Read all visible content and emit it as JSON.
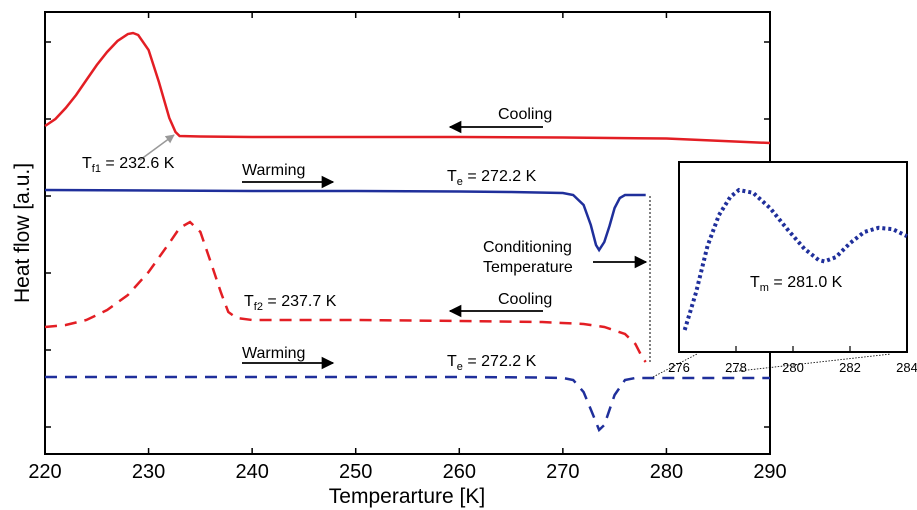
{
  "chart_data": {
    "type": "line",
    "title": "",
    "xlabel": "Temperarture [K]",
    "ylabel": "Heat flow [a.u.]",
    "xlim": [
      220,
      290
    ],
    "x_ticks": [
      "220",
      "230",
      "240",
      "250",
      "260",
      "270",
      "280",
      "290"
    ],
    "y_tick_labels": "none",
    "grid": false,
    "series": [
      {
        "id": "cooling1",
        "style": "solid",
        "color": "#e31e24",
        "points": [
          [
            220,
            126
          ],
          [
            221,
            119
          ],
          [
            222,
            108
          ],
          [
            223,
            95
          ],
          [
            224,
            80
          ],
          [
            225,
            65
          ],
          [
            226,
            52
          ],
          [
            227,
            41
          ],
          [
            228,
            34
          ],
          [
            228.5,
            33
          ],
          [
            229,
            35
          ],
          [
            230,
            50
          ],
          [
            231,
            82
          ],
          [
            232,
            118
          ],
          [
            232.6,
            132
          ],
          [
            233,
            136
          ],
          [
            235,
            136.5
          ],
          [
            240,
            137
          ],
          [
            250,
            137
          ],
          [
            260,
            137
          ],
          [
            270,
            137.5
          ],
          [
            280,
            138.5
          ],
          [
            290,
            143
          ]
        ]
      },
      {
        "id": "warming1",
        "style": "solid",
        "color": "#1f2f9b",
        "points": [
          [
            220,
            190
          ],
          [
            240,
            191
          ],
          [
            250,
            191
          ],
          [
            260,
            191.5
          ],
          [
            265,
            192
          ],
          [
            270,
            193
          ],
          [
            271,
            195
          ],
          [
            272,
            205
          ],
          [
            272.7,
            225
          ],
          [
            273.2,
            245
          ],
          [
            273.5,
            250
          ],
          [
            274,
            242
          ],
          [
            274.5,
            226
          ],
          [
            275,
            208
          ],
          [
            275.5,
            198
          ],
          [
            276,
            195
          ],
          [
            278,
            195
          ]
        ]
      },
      {
        "id": "cooling2",
        "style": "dashed",
        "color": "#e31e24",
        "points": [
          [
            220,
            327
          ],
          [
            222,
            325
          ],
          [
            224,
            320
          ],
          [
            226,
            310
          ],
          [
            228,
            295
          ],
          [
            230,
            272
          ],
          [
            232,
            243
          ],
          [
            233,
            228
          ],
          [
            234,
            222
          ],
          [
            235,
            232
          ],
          [
            236,
            262
          ],
          [
            237,
            293
          ],
          [
            237.7,
            312
          ],
          [
            238.5,
            318
          ],
          [
            240,
            320
          ],
          [
            250,
            320
          ],
          [
            260,
            321
          ],
          [
            268,
            322
          ],
          [
            272,
            324
          ],
          [
            274,
            327
          ],
          [
            276,
            334
          ],
          [
            277,
            344
          ],
          [
            277.7,
            358
          ],
          [
            278,
            362
          ]
        ]
      },
      {
        "id": "warming2",
        "style": "dashed",
        "color": "#1f2f9b",
        "points": [
          [
            220,
            377
          ],
          [
            230,
            377
          ],
          [
            240,
            377
          ],
          [
            250,
            377
          ],
          [
            260,
            377
          ],
          [
            268,
            377.5
          ],
          [
            270,
            378
          ],
          [
            271,
            380
          ],
          [
            272,
            392
          ],
          [
            273,
            417
          ],
          [
            273.5,
            430
          ],
          [
            274,
            425
          ],
          [
            275,
            395
          ],
          [
            276,
            380
          ],
          [
            277,
            378
          ],
          [
            280,
            378
          ],
          [
            290,
            378
          ]
        ]
      },
      {
        "id": "inset",
        "style": "dotted",
        "color": "#1f2f9b",
        "points": [
          [
            276.2,
            0.0
          ],
          [
            276.6,
            0.27
          ],
          [
            277.0,
            0.6
          ],
          [
            277.4,
            0.82
          ],
          [
            277.8,
            0.95
          ],
          [
            278.1,
            1.0
          ],
          [
            278.6,
            0.98
          ],
          [
            279.2,
            0.87
          ],
          [
            279.8,
            0.72
          ],
          [
            280.4,
            0.58
          ],
          [
            280.9,
            0.5
          ],
          [
            281.1,
            0.49
          ],
          [
            281.5,
            0.52
          ],
          [
            282.0,
            0.62
          ],
          [
            282.5,
            0.7
          ],
          [
            283.0,
            0.73
          ],
          [
            283.5,
            0.72
          ],
          [
            284.0,
            0.67
          ]
        ]
      }
    ],
    "inset": {
      "xlim": [
        276,
        284
      ],
      "x_ticks": [
        "276",
        "278",
        "280",
        "282",
        "284"
      ],
      "annotation": {
        "main": "T",
        "sub": "m",
        "rest": " = 281.0 K"
      }
    },
    "annotations": {
      "tf1": {
        "main": "T",
        "sub": "f1",
        "rest": " = 232.6 K"
      },
      "tf2": {
        "main": "T",
        "sub": "f2",
        "rest": " = 237.7 K"
      },
      "te1": {
        "main": "T",
        "sub": "e",
        "rest": " = 272.2 K"
      },
      "te2": {
        "main": "T",
        "sub": "e",
        "rest": " = 272.2 K"
      },
      "cooling1": "Cooling",
      "cooling2": "Cooling",
      "warming1": "Warming",
      "warming2": "Warming",
      "conditioning_line1": "Conditioning",
      "conditioning_line2": "Temperature"
    },
    "colors": {
      "red": "#e31e24",
      "blue": "#1f2f9b",
      "pointer": "#999999"
    }
  }
}
